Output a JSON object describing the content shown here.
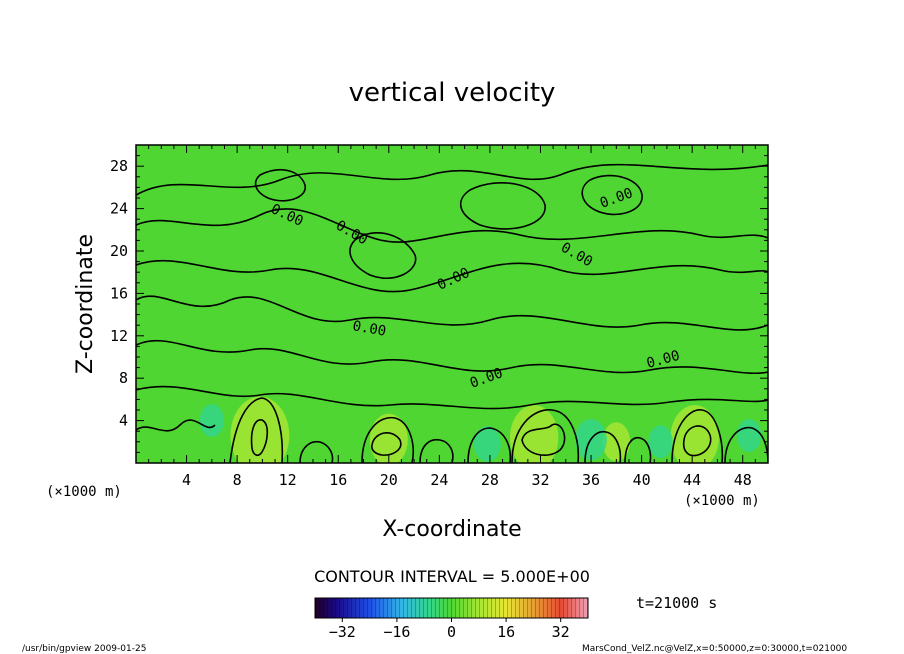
{
  "chart_data": {
    "type": "heatmap",
    "title": "vertical velocity",
    "xlabel": "X-coordinate",
    "ylabel": "Z-coordinate",
    "x_unit": "(×1000 m)",
    "y_unit": "(×1000 m)",
    "xlim": [
      0,
      50
    ],
    "ylim": [
      0,
      30
    ],
    "x_ticks": [
      "4",
      "8",
      "12",
      "16",
      "20",
      "24",
      "28",
      "32",
      "36",
      "40",
      "44",
      "48"
    ],
    "y_ticks": [
      "4",
      "8",
      "12",
      "16",
      "20",
      "24",
      "28"
    ],
    "contour_interval_label": "CONTOUR INTERVAL = 5.000E+00",
    "contour_labels": [
      "0.00",
      "0.00",
      "0.00",
      "0.00",
      "0.00",
      "0.00",
      "0.00",
      "0.00"
    ],
    "time_label": "t=21000 s",
    "colorbar": {
      "min": -40,
      "max": 40,
      "ticks": [
        "-32",
        "-16",
        "0",
        "16",
        "32"
      ]
    },
    "colors": {
      "background_field": "#4fd633",
      "positive_cell": "#a6e633",
      "negative_cell": "#33d68a"
    },
    "updraft_cells": [
      {
        "x": 9.8,
        "z": 2.6,
        "value": 18
      },
      {
        "x": 20,
        "z": 2.2,
        "value": 10
      },
      {
        "x": 31.5,
        "z": 2.4,
        "value": 14
      },
      {
        "x": 44.2,
        "z": 2.4,
        "value": 14
      },
      {
        "x": 38,
        "z": 2.0,
        "value": 6
      }
    ],
    "downdraft_cells": [
      {
        "x": 6,
        "z": 4,
        "value": -6
      },
      {
        "x": 27.8,
        "z": 1.8,
        "value": -7
      },
      {
        "x": 36,
        "z": 2.2,
        "value": -9
      },
      {
        "x": 41.5,
        "z": 2.0,
        "value": -6
      },
      {
        "x": 48.5,
        "z": 2.6,
        "value": -6
      }
    ]
  },
  "footer": {
    "left": "/usr/bin/gpview  2009-01-25",
    "right": "MarsCond_VelZ.nc@VelZ,x=0:50000,z=0:30000,t=021000"
  }
}
